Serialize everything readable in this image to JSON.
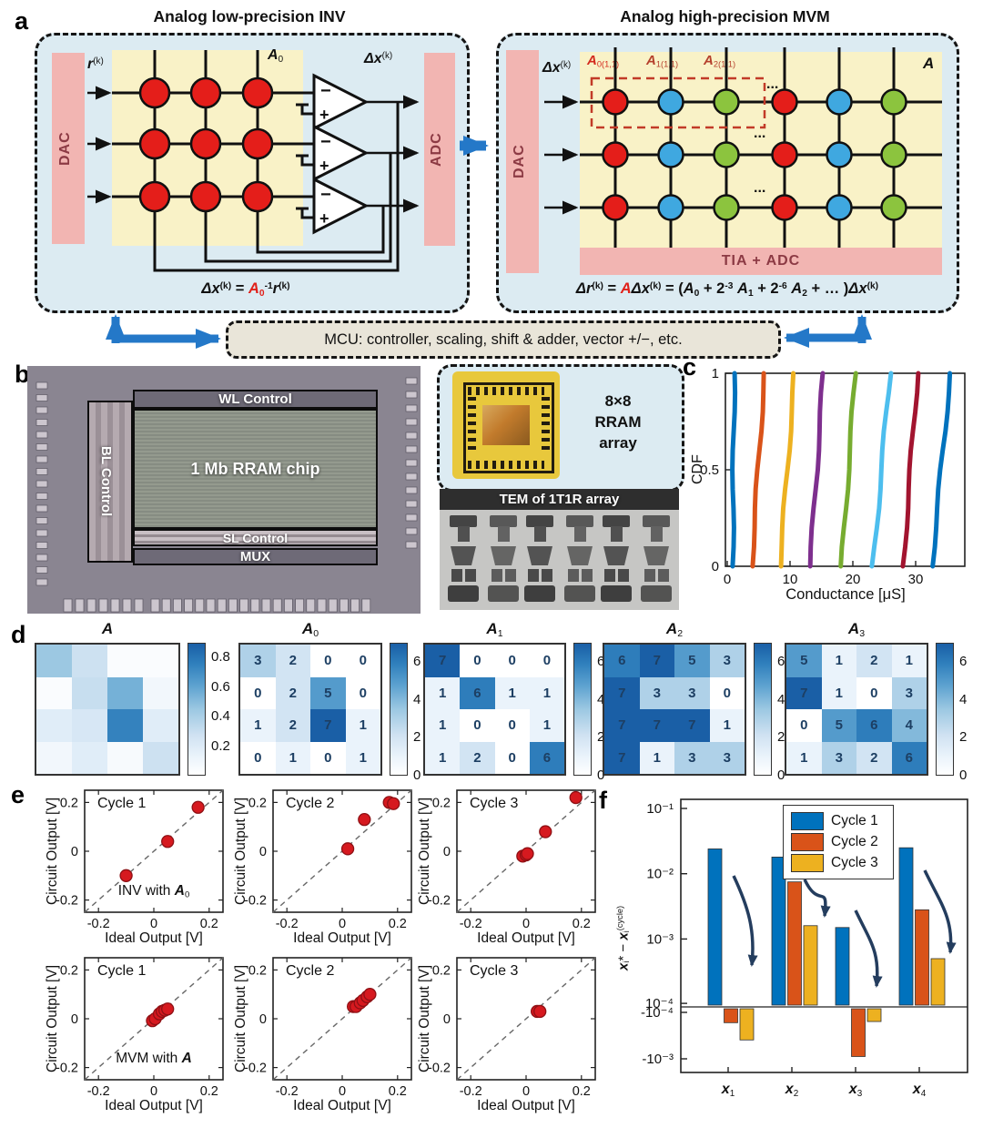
{
  "panels": {
    "a": "a",
    "b": "b",
    "c": "c",
    "d": "d",
    "e": "e",
    "f": "f"
  },
  "colors": {
    "arrow_blue": "#2478c8",
    "formula_red": "#e02019",
    "marker_red": "#d6191f",
    "navy_arrow": "#243d5e",
    "blues_colormap": [
      [
        0,
        "#ffffff"
      ],
      [
        0.14,
        "#eaf3fb"
      ],
      [
        0.3,
        "#d0e2f2"
      ],
      [
        0.5,
        "#9cc8e2"
      ],
      [
        0.68,
        "#5da2d0"
      ],
      [
        0.85,
        "#2f7fbc"
      ],
      [
        1,
        "#1a5fa6"
      ]
    ],
    "cell_red": "#e41e1a",
    "cell_blue": "#3fa8e0",
    "cell_green": "#8cc43e"
  },
  "panel_a": {
    "inv_title": "Analog low-precision INV",
    "mvm_title": "Analog high-precision MVM",
    "dac": "DAC",
    "adc": "ADC",
    "tia_adc": "TIA + ADC",
    "mcu": "MCU: controller, scaling, shift & adder, vector +/−, etc.",
    "labels": {
      "r_k": [
        {
          "t": "r",
          "b": 1,
          "i": 1
        },
        {
          "t": "(k)",
          "sup": 1
        }
      ],
      "dx_k_left": [
        {
          "t": "Δx",
          "b": 1,
          "i": 1
        },
        {
          "t": "(k)",
          "sup": 1
        }
      ],
      "a0_left": [
        {
          "t": "A",
          "b": 1,
          "i": 1
        },
        {
          "t": "0",
          "sub": 1
        }
      ],
      "dx_k_right": [
        {
          "t": "Δx",
          "b": 1,
          "i": 1
        },
        {
          "t": "(k)",
          "sup": 1
        }
      ],
      "a_right": [
        {
          "t": "A",
          "b": 1,
          "i": 1
        }
      ],
      "a0_11": [
        {
          "t": "A",
          "b": 1,
          "i": 1,
          "c": "#d42a1e"
        },
        {
          "t": "0(1,1)",
          "sub": 1,
          "c": "#d42a1e"
        }
      ],
      "a1_11": [
        {
          "t": "A",
          "b": 1,
          "i": 1,
          "c": "#b5402c"
        },
        {
          "t": "1(1,1)",
          "sub": 1,
          "c": "#b5402c"
        }
      ],
      "a2_11": [
        {
          "t": "A",
          "b": 1,
          "i": 1,
          "c": "#b5402c"
        },
        {
          "t": "2(1,1)",
          "sub": 1,
          "c": "#b5402c"
        }
      ],
      "dots1": "...",
      "dots2": "...",
      "dots3": "..."
    },
    "inv_formula": [
      {
        "t": "Δx",
        "b": 1,
        "i": 1
      },
      {
        "t": "(k)",
        "sup": 1
      },
      {
        "t": " = "
      },
      {
        "t": "A",
        "b": 1,
        "i": 1,
        "c": "#e02019"
      },
      {
        "t": "0",
        "sub": 1,
        "c": "#e02019"
      },
      {
        "t": "-1",
        "sup": 1
      },
      {
        "t": "r",
        "b": 1,
        "i": 1
      },
      {
        "t": "(k)",
        "sup": 1
      }
    ],
    "mvm_formula": [
      {
        "t": "Δr",
        "b": 1,
        "i": 1
      },
      {
        "t": "(k)",
        "sup": 1
      },
      {
        "t": " = "
      },
      {
        "t": "A",
        "b": 1,
        "i": 1,
        "c": "#e02019"
      },
      {
        "t": "Δx",
        "b": 1,
        "i": 1
      },
      {
        "t": "(k)",
        "sup": 1
      },
      {
        "t": " = ("
      },
      {
        "t": "A",
        "b": 1,
        "i": 1
      },
      {
        "t": "0",
        "sub": 1
      },
      {
        "t": " + 2"
      },
      {
        "t": "-3",
        "sup": 1
      },
      {
        "t": " "
      },
      {
        "t": "A",
        "b": 1,
        "i": 1
      },
      {
        "t": "1",
        "sub": 1
      },
      {
        "t": " + 2"
      },
      {
        "t": "-6",
        "sup": 1
      },
      {
        "t": " "
      },
      {
        "t": "A",
        "b": 1,
        "i": 1
      },
      {
        "t": "2",
        "sub": 1
      },
      {
        "t": " + … )"
      },
      {
        "t": "Δx",
        "b": 1,
        "i": 1
      },
      {
        "t": "(k)",
        "sup": 1
      }
    ],
    "crossbar_left": {
      "rows": 3,
      "cols": 3,
      "cell_color": "#e41e1a"
    },
    "crossbar_right": {
      "rows": 3,
      "cols": 6,
      "column_colors": [
        "#e41e1a",
        "#3fa8e0",
        "#8cc43e",
        "#e41e1a",
        "#3fa8e0",
        "#8cc43e"
      ]
    }
  },
  "panel_b": {
    "wl": "WL Control",
    "bl": "BL Control",
    "chip": "1 Mb RRAM chip",
    "sl": "SL Control",
    "mux": "MUX",
    "array_label_lines": [
      "8×8",
      "RRAM",
      "array"
    ],
    "tem_title": "TEM of 1T1R array"
  },
  "chart_data": [
    {
      "type": "line",
      "subtype": "cdf",
      "ylabel": "CDF",
      "xlabel": "Conductance [μS]",
      "xticks": [
        0,
        10,
        20,
        30
      ],
      "yticks": [
        0,
        0.5,
        1
      ],
      "xlim": [
        0,
        37.8
      ],
      "ylim": [
        0,
        1
      ],
      "levels": [
        {
          "x_at_cdf0": 0.85,
          "x_at_cdf1": 1.1,
          "color": "#0072BD"
        },
        {
          "x_at_cdf0": 3.9,
          "x_at_cdf1": 5.9,
          "color": "#D95319"
        },
        {
          "x_at_cdf0": 8.4,
          "x_at_cdf1": 10.7,
          "color": "#EDB120"
        },
        {
          "x_at_cdf0": 13.2,
          "x_at_cdf1": 15.3,
          "color": "#7E2F8E"
        },
        {
          "x_at_cdf0": 18.2,
          "x_at_cdf1": 20.4,
          "color": "#77AC30"
        },
        {
          "x_at_cdf0": 23.2,
          "x_at_cdf1": 25.9,
          "color": "#4DBEEE"
        },
        {
          "x_at_cdf0": 28.0,
          "x_at_cdf1": 30.3,
          "color": "#A2142F"
        },
        {
          "x_at_cdf0": 32.6,
          "x_at_cdf1": 35.5,
          "color": "#0072BD"
        }
      ]
    },
    {
      "type": "heatmap",
      "title_rich": [
        {
          "t": "A",
          "b": 1,
          "i": 1
        }
      ],
      "matrix": [
        [
          0.45,
          0.28,
          0.03,
          0.03
        ],
        [
          0.03,
          0.3,
          0.55,
          0.08
        ],
        [
          0.18,
          0.23,
          0.75,
          0.18
        ],
        [
          0.08,
          0.18,
          0.05,
          0.28
        ]
      ],
      "vmax": 0.9,
      "cbar_ticks": [
        0.8,
        0.6,
        0.4,
        0.2
      ],
      "show_values": false
    },
    {
      "type": "heatmap",
      "title_rich": [
        {
          "t": "A",
          "b": 1,
          "i": 1
        },
        {
          "t": "0",
          "sub": 1
        }
      ],
      "matrix": [
        [
          3,
          2,
          0,
          0
        ],
        [
          0,
          2,
          5,
          0
        ],
        [
          1,
          2,
          7,
          1
        ],
        [
          0,
          1,
          0,
          1
        ]
      ],
      "vmax": 7,
      "cbar_ticks": [
        6,
        4,
        2,
        0
      ],
      "show_values": true
    },
    {
      "type": "heatmap",
      "title_rich": [
        {
          "t": "A",
          "b": 1,
          "i": 1
        },
        {
          "t": "1",
          "sub": 1
        }
      ],
      "matrix": [
        [
          7,
          0,
          0,
          0
        ],
        [
          1,
          6,
          1,
          1
        ],
        [
          1,
          0,
          0,
          1
        ],
        [
          1,
          2,
          0,
          6
        ]
      ],
      "vmax": 7,
      "cbar_ticks": [
        6,
        4,
        2,
        0
      ],
      "show_values": true
    },
    {
      "type": "heatmap",
      "title_rich": [
        {
          "t": "A",
          "b": 1,
          "i": 1
        },
        {
          "t": "2",
          "sub": 1
        }
      ],
      "matrix": [
        [
          6,
          7,
          5,
          3
        ],
        [
          7,
          3,
          3,
          0
        ],
        [
          7,
          7,
          7,
          1
        ],
        [
          7,
          1,
          3,
          3
        ]
      ],
      "vmax": 7,
      "cbar_ticks": [
        6,
        4,
        2,
        0
      ],
      "show_values": true
    },
    {
      "type": "heatmap",
      "title_rich": [
        {
          "t": "A",
          "b": 1,
          "i": 1
        },
        {
          "t": "3",
          "sub": 1
        }
      ],
      "matrix": [
        [
          5,
          1,
          2,
          1
        ],
        [
          7,
          1,
          0,
          3
        ],
        [
          0,
          5,
          6,
          4
        ],
        [
          1,
          3,
          2,
          6
        ]
      ],
      "vmax": 7,
      "cbar_ticks": [
        6,
        4,
        2,
        0
      ],
      "show_values": true
    },
    {
      "type": "scatter",
      "title": "Cycle 1",
      "note": [
        {
          "t": "INV with "
        },
        {
          "t": "A",
          "b": 1,
          "i": 1
        },
        {
          "t": "0",
          "sub": 1
        }
      ],
      "xlabel": "Ideal Output [V]",
      "ylabel": "Circuit Output [V]",
      "xlim": [
        -0.25,
        0.25
      ],
      "ylim": [
        -0.25,
        0.25
      ],
      "ticks": [
        -0.2,
        0,
        0.2
      ],
      "marker_color": "#d6191f",
      "points": [
        [
          -0.1,
          -0.1
        ],
        [
          0.05,
          0.04
        ],
        [
          0.16,
          0.18
        ]
      ]
    },
    {
      "type": "scatter",
      "title": "Cycle 2",
      "note": null,
      "xlabel": "Ideal Output [V]",
      "ylabel": "Circuit Output [V]",
      "xlim": [
        -0.25,
        0.25
      ],
      "ylim": [
        -0.25,
        0.25
      ],
      "ticks": [
        -0.2,
        0,
        0.2
      ],
      "marker_color": "#d6191f",
      "points": [
        [
          0.02,
          0.01
        ],
        [
          0.08,
          0.13
        ],
        [
          0.17,
          0.2
        ],
        [
          0.185,
          0.195
        ]
      ]
    },
    {
      "type": "scatter",
      "title": "Cycle 3",
      "note": null,
      "xlabel": "Ideal Output [V]",
      "ylabel": "Circuit Output [V]",
      "xlim": [
        -0.25,
        0.25
      ],
      "ylim": [
        -0.25,
        0.25
      ],
      "ticks": [
        -0.2,
        0,
        0.2
      ],
      "marker_color": "#d6191f",
      "points": [
        [
          -0.012,
          -0.02
        ],
        [
          0.0,
          -0.015
        ],
        [
          0.005,
          -0.01
        ],
        [
          0.07,
          0.08
        ],
        [
          0.18,
          0.22
        ]
      ]
    },
    {
      "type": "scatter",
      "title": "Cycle 1",
      "note": [
        {
          "t": "MVM with "
        },
        {
          "t": "A",
          "b": 1,
          "i": 1
        }
      ],
      "xlabel": "Ideal Output [V]",
      "ylabel": "Circuit Output [V]",
      "xlim": [
        -0.25,
        0.25
      ],
      "ylim": [
        -0.25,
        0.25
      ],
      "ticks": [
        -0.2,
        0,
        0.2
      ],
      "marker_color": "#d6191f",
      "points": [
        [
          -0.005,
          -0.008
        ],
        [
          0.005,
          0.0
        ],
        [
          0.02,
          0.02
        ],
        [
          0.03,
          0.03
        ],
        [
          0.04,
          0.035
        ],
        [
          0.05,
          0.04
        ]
      ]
    },
    {
      "type": "scatter",
      "title": "Cycle 2",
      "note": null,
      "xlabel": "Ideal Output [V]",
      "ylabel": "Circuit Output [V]",
      "xlim": [
        -0.25,
        0.25
      ],
      "ylim": [
        -0.25,
        0.25
      ],
      "ticks": [
        -0.2,
        0,
        0.2
      ],
      "marker_color": "#d6191f",
      "points": [
        [
          0.04,
          0.05
        ],
        [
          0.05,
          0.05
        ],
        [
          0.065,
          0.065
        ],
        [
          0.075,
          0.075
        ],
        [
          0.09,
          0.09
        ],
        [
          0.1,
          0.1
        ]
      ]
    },
    {
      "type": "scatter",
      "title": "Cycle 3",
      "note": null,
      "xlabel": "Ideal Output [V]",
      "ylabel": "Circuit Output [V]",
      "xlim": [
        -0.25,
        0.25
      ],
      "ylim": [
        -0.25,
        0.25
      ],
      "ticks": [
        -0.2,
        0,
        0.2
      ],
      "marker_color": "#d6191f",
      "points": [
        [
          0.04,
          0.03
        ],
        [
          0.05,
          0.03
        ]
      ]
    },
    {
      "type": "bar",
      "scale": "symlog",
      "ylabel_rich": [
        {
          "t": "x",
          "b": 1,
          "i": 1
        },
        {
          "t": "i",
          "sub": 1
        },
        {
          "t": "* − "
        },
        {
          "t": "x",
          "b": 1,
          "i": 1
        },
        {
          "t": "i",
          "sub": 1
        },
        {
          "t": "(cycle)",
          "sup": 1
        }
      ],
      "categories_rich": [
        [
          {
            "t": "x",
            "b": 1,
            "i": 1
          },
          {
            "t": "1",
            "sub": 1
          }
        ],
        [
          {
            "t": "x",
            "b": 1,
            "i": 1
          },
          {
            "t": "2",
            "sub": 1
          }
        ],
        [
          {
            "t": "x",
            "b": 1,
            "i": 1
          },
          {
            "t": "3",
            "sub": 1
          }
        ],
        [
          {
            "t": "x",
            "b": 1,
            "i": 1
          },
          {
            "t": "4",
            "sub": 1
          }
        ]
      ],
      "yticks_pos": [
        {
          "label": "10⁻¹",
          "v": 0.1
        },
        {
          "label": "10⁻²",
          "v": 0.01
        },
        {
          "label": "10⁻³",
          "v": 0.001
        },
        {
          "label": "10⁻⁴",
          "v": 0.0001
        }
      ],
      "yticks_neg": [
        {
          "label": "-10⁻⁴",
          "v": -0.0001
        },
        {
          "label": "-10⁻³",
          "v": -0.001
        }
      ],
      "series": [
        {
          "name": "Cycle 1",
          "color": "#0072BD",
          "values": [
            0.024,
            0.018,
            0.0015,
            0.025
          ]
        },
        {
          "name": "Cycle 2",
          "color": "#D95319",
          "values": [
            -0.00019,
            0.0075,
            -0.0009,
            0.0028
          ]
        },
        {
          "name": "Cycle 3",
          "color": "#EDB120",
          "values": [
            -0.00042,
            0.0016,
            -0.00018,
            0.0005
          ]
        }
      ]
    }
  ]
}
